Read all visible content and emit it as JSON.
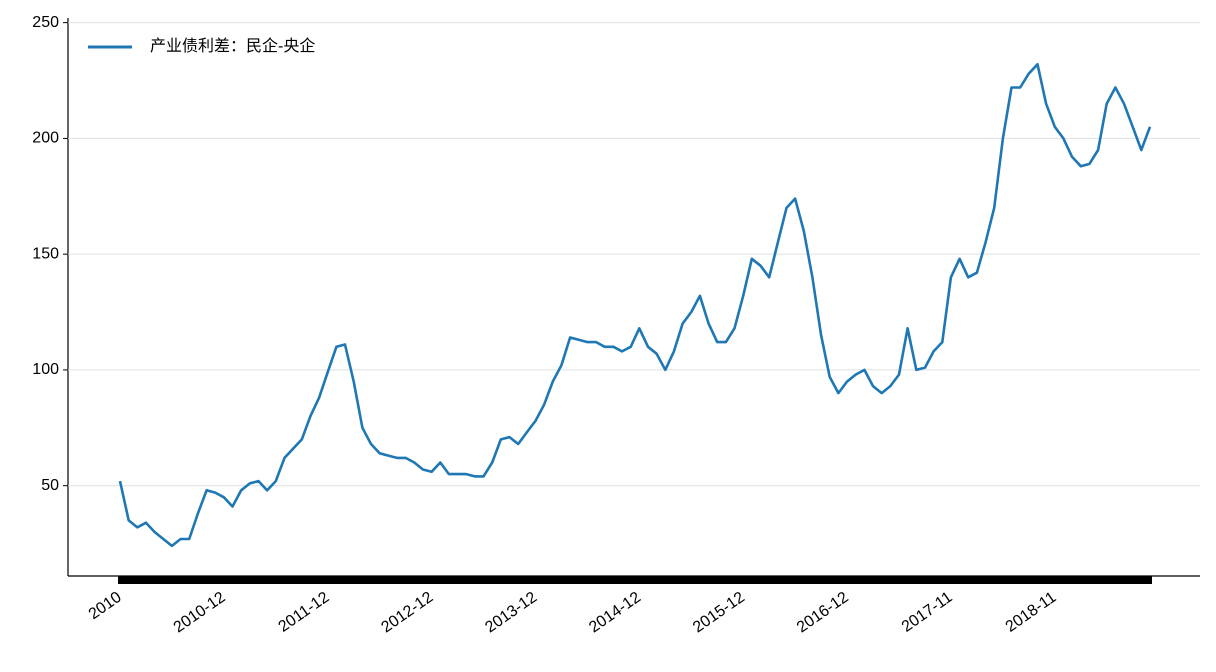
{
  "chart_data": {
    "type": "line",
    "legend": "upper left",
    "grid": true,
    "categories": [
      "2010",
      null,
      null,
      null,
      null,
      null,
      null,
      null,
      null,
      null,
      null,
      null,
      "2010-12",
      null,
      null,
      null,
      null,
      null,
      null,
      null,
      null,
      null,
      null,
      null,
      "2011-12",
      null,
      null,
      null,
      null,
      null,
      null,
      null,
      null,
      null,
      null,
      null,
      "2012-12",
      null,
      null,
      null,
      null,
      null,
      null,
      null,
      null,
      null,
      null,
      null,
      "2013-12",
      null,
      null,
      null,
      null,
      null,
      null,
      null,
      null,
      null,
      null,
      null,
      "2014-12",
      null,
      null,
      null,
      null,
      null,
      null,
      null,
      null,
      null,
      null,
      null,
      "2015-12",
      null,
      null,
      null,
      null,
      null,
      null,
      null,
      null,
      null,
      null,
      null,
      "2016-12",
      null,
      null,
      null,
      null,
      null,
      null,
      null,
      null,
      null,
      null,
      null,
      "2017-11",
      null,
      null,
      null,
      null,
      null,
      null,
      null,
      null,
      null,
      null,
      null,
      "2018-11",
      null,
      null,
      null,
      null,
      null,
      null,
      null,
      null,
      null,
      null,
      null
    ],
    "series": [
      {
        "name": "产业债利差：民企-央企",
        "color": "#1f77b4",
        "values": [
          52,
          35,
          32,
          34,
          30,
          27,
          24,
          27,
          27,
          38,
          48,
          47,
          45,
          41,
          48,
          51,
          52,
          48,
          52,
          62,
          66,
          70,
          80,
          88,
          99,
          110,
          111,
          95,
          75,
          68,
          64,
          63,
          62,
          62,
          60,
          57,
          56,
          60,
          55,
          55,
          55,
          54,
          54,
          60,
          70,
          71,
          68,
          73,
          78,
          85,
          95,
          102,
          114,
          113,
          112,
          112,
          110,
          110,
          108,
          110,
          118,
          110,
          107,
          100,
          108,
          120,
          125,
          132,
          120,
          112,
          112,
          118,
          132,
          148,
          145,
          140,
          155,
          170,
          174,
          160,
          140,
          115,
          97,
          90,
          95,
          98,
          100,
          93,
          90,
          93,
          98,
          118,
          100,
          101,
          108,
          112,
          140,
          148,
          140,
          142,
          155,
          170,
          200,
          222,
          222,
          228,
          232,
          215,
          205,
          200,
          192,
          188,
          189,
          195,
          215,
          222,
          215,
          205,
          195,
          205
        ]
      }
    ],
    "ylim": [
      11,
      252
    ],
    "yticks": [
      50,
      100,
      150,
      200,
      250
    ]
  }
}
